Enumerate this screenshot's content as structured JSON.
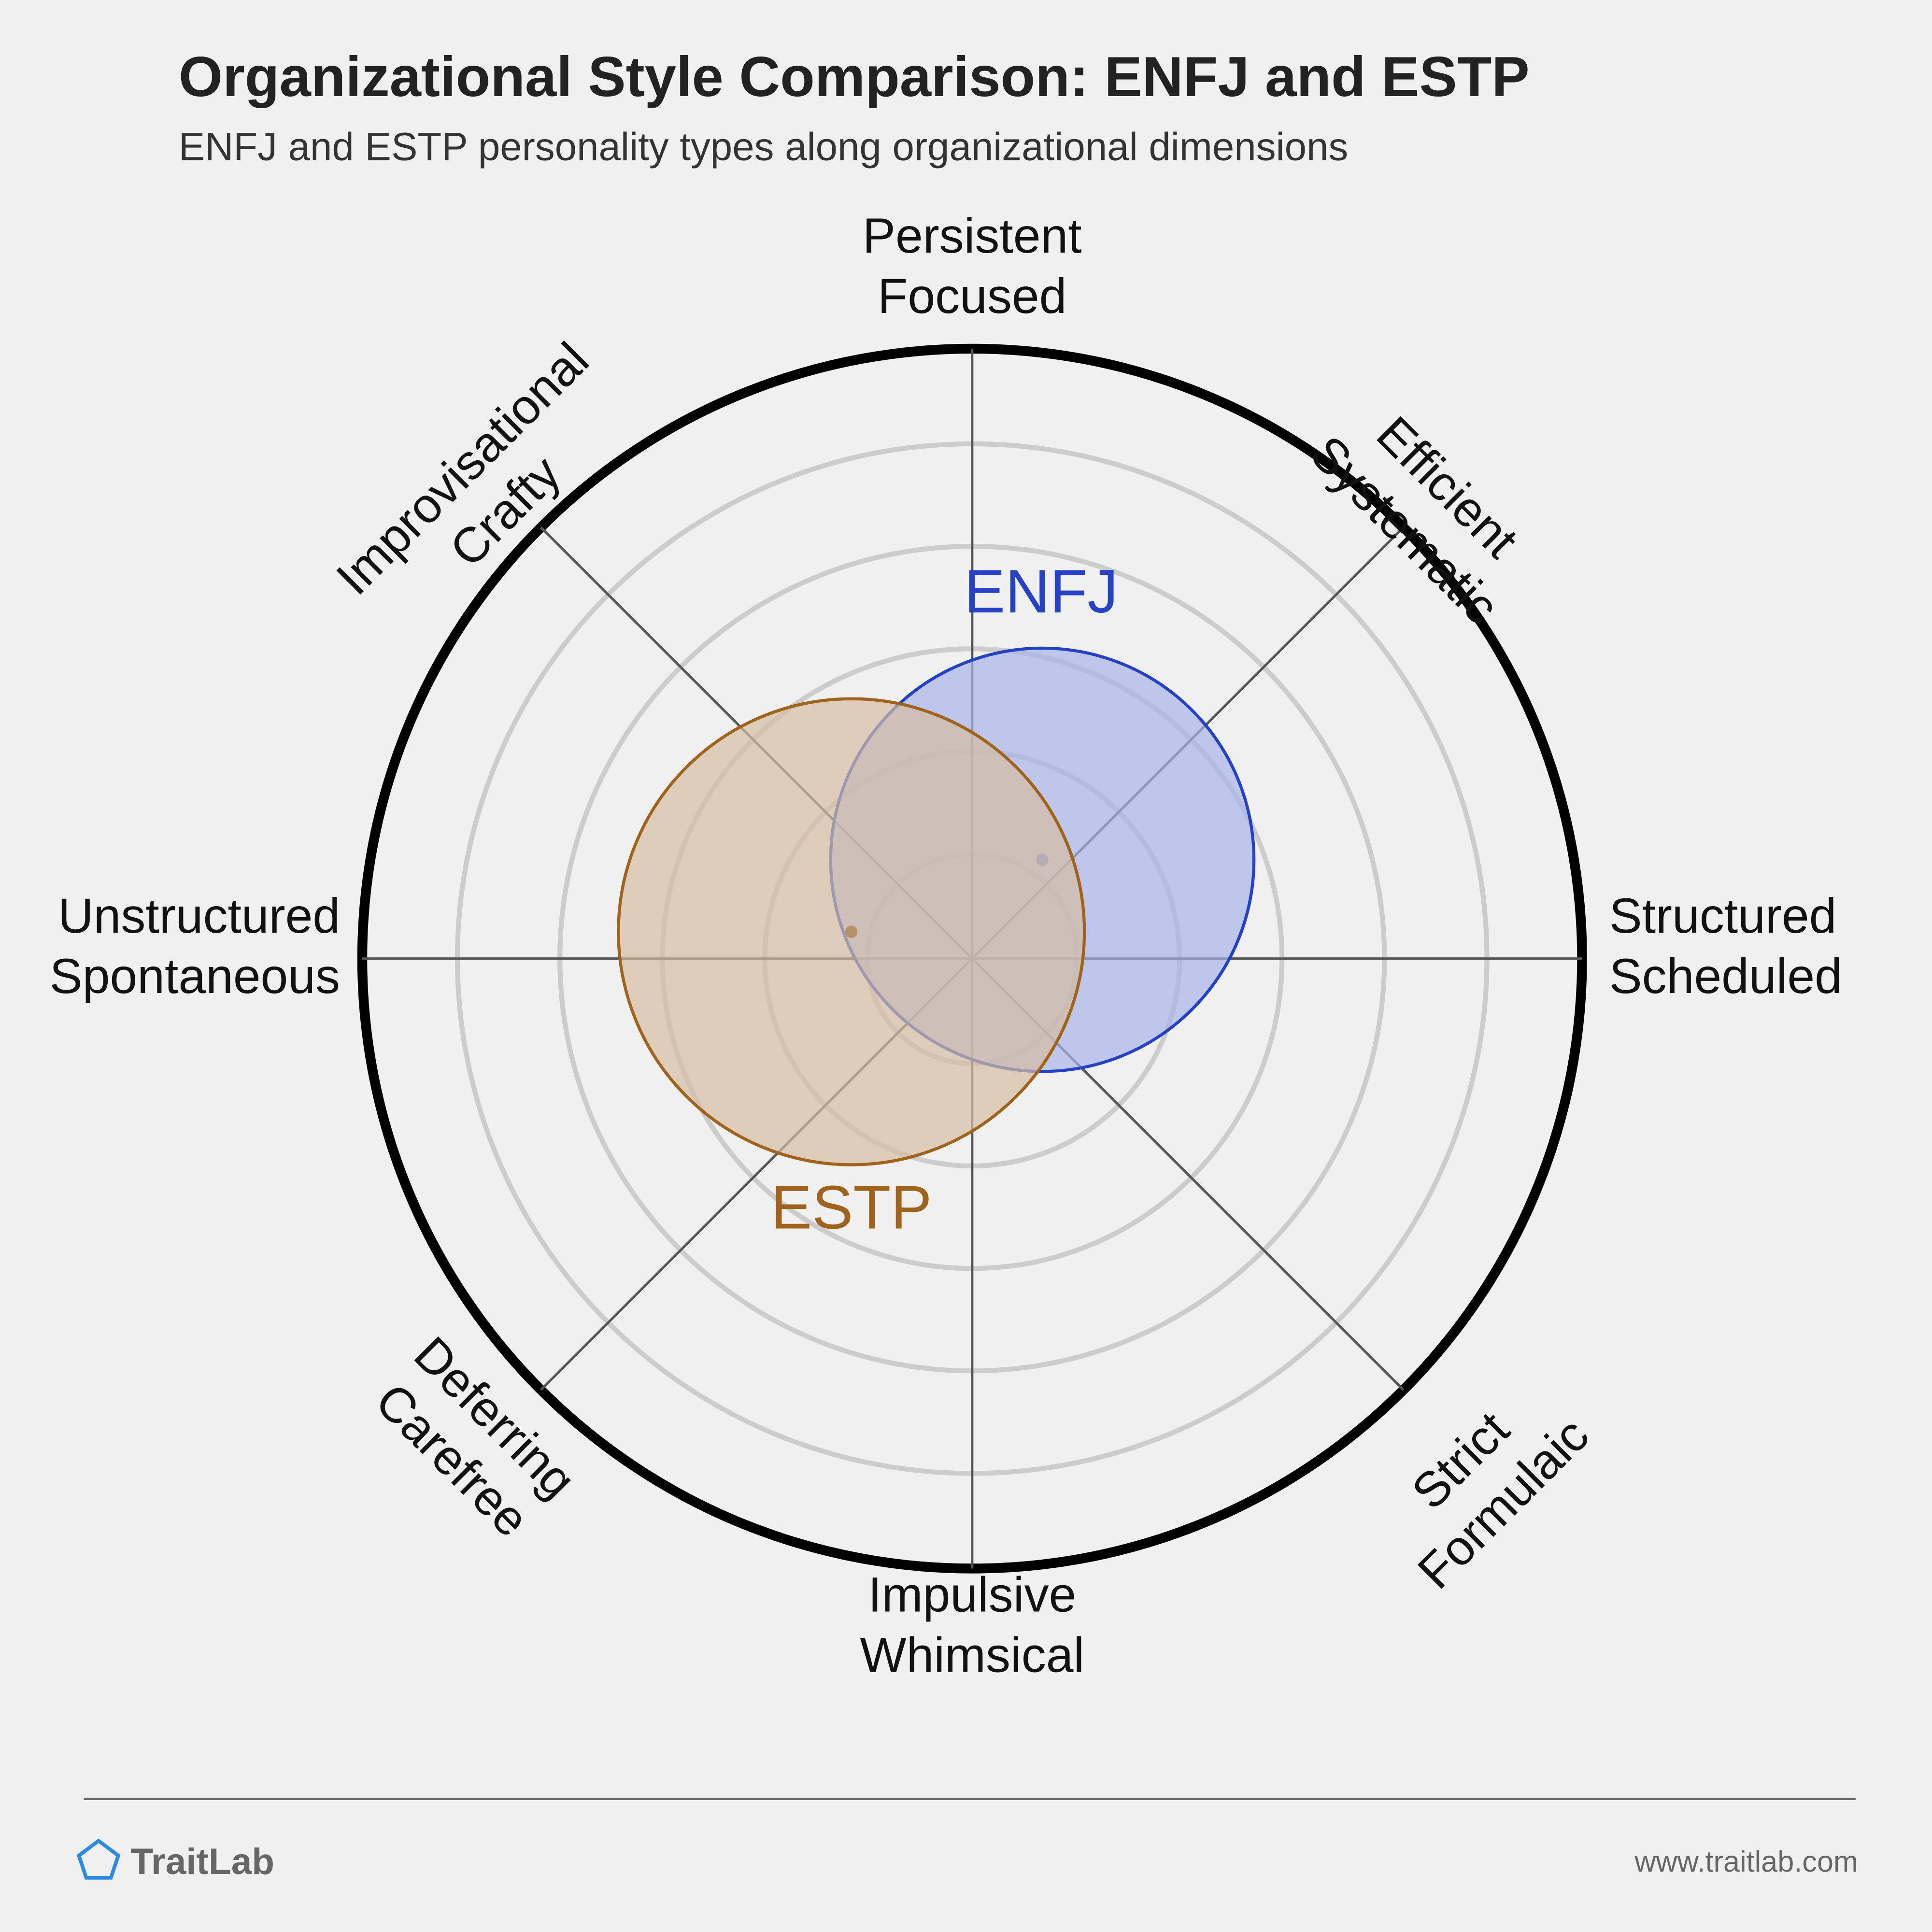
{
  "chart_data": {
    "type": "radial",
    "title": "Organizational Style Comparison: ENFJ and ESTP",
    "subtitle": "ENFJ and ESTP personality types along organizational dimensions",
    "axis_labels": [
      [
        "Structured",
        "Scheduled"
      ],
      [
        "Efficient",
        "Systematic"
      ],
      [
        "Persistent",
        "Focused"
      ],
      [
        "Improvisational",
        "Crafty"
      ],
      [
        "Unstructured",
        "Spontaneous"
      ],
      [
        "Deferring",
        "Carefree"
      ],
      [
        "Impulsive",
        "Whimsical"
      ],
      [
        "Strict",
        "Formulaic"
      ]
    ],
    "xlim": [
      -100,
      100
    ],
    "ylim": [
      -100,
      100
    ],
    "series": [
      {
        "name": "ENFJ",
        "color": "#2541c4",
        "fill": "#a9b3ea",
        "x": 11.5,
        "y": 16.2,
        "size": 34.7
      },
      {
        "name": "ESTP",
        "color": "#a0631b",
        "fill": "#d4bea3",
        "x": -19.8,
        "y": 4.4,
        "size": 38.2
      }
    ],
    "footer": {
      "brand": "TraitLab",
      "url": "www.traitlab.com"
    }
  }
}
